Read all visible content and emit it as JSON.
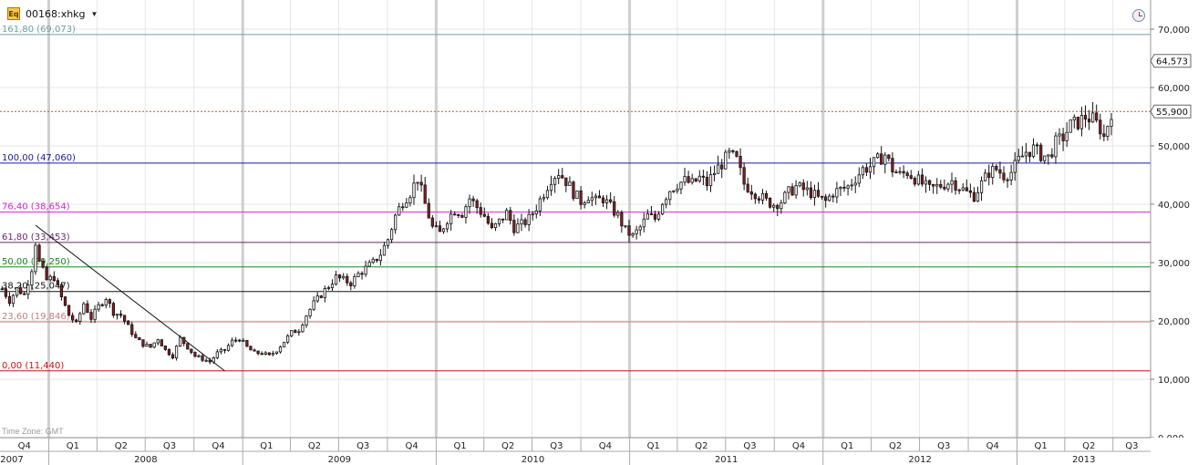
{
  "header": {
    "ticker": "00168:xhkg",
    "ticker_icon": "Eq",
    "timezone": "Time Zone: GMT"
  },
  "chart_data": {
    "type": "candlestick",
    "symbol": "00168:xhkg",
    "y_ticks": [
      "0,000",
      "10,000",
      "20,000",
      "30,000",
      "40,000",
      "50,000",
      "60,000",
      "70,000"
    ],
    "ylim": [
      0,
      75000
    ],
    "xlim": [
      "2007-10-01",
      "2013-09-10"
    ],
    "last_price": {
      "value": 55900,
      "label": "55,900"
    },
    "marker": {
      "value": 64573,
      "label": "64,573"
    },
    "fib_levels": [
      {
        "label": "161,80 (69,073)",
        "value": 69073,
        "color": "#6aa3a3"
      },
      {
        "label": "100,00 (47,060)",
        "value": 47060,
        "color": "#1a1a9e"
      },
      {
        "label": "76,40 (38,654)",
        "value": 38654,
        "color": "#dd22cc"
      },
      {
        "label": "61,80 (33,453)",
        "value": 33453,
        "color": "#6a2a6a"
      },
      {
        "label": "50,00 (29,250)",
        "value": 29250,
        "color": "#1a8a1a"
      },
      {
        "label": "38,20 (25,047)",
        "value": 25047,
        "color": "#111111"
      },
      {
        "label": "23,60 (19,846)",
        "value": 19846,
        "color": "#c08080"
      },
      {
        "label": "0,00 (11,440)",
        "value": 11440,
        "color": "#cc1111"
      }
    ],
    "trendline": [
      {
        "x": "2007-12-07",
        "y": 36400
      },
      {
        "x": "2008-11-28",
        "y": 11440
      }
    ],
    "x_quarters": [
      {
        "label": "Q4",
        "date": "2007-10-01"
      },
      {
        "label": "Q1",
        "date": "2008-01-01"
      },
      {
        "label": "Q2",
        "date": "2008-04-01"
      },
      {
        "label": "Q3",
        "date": "2008-07-01"
      },
      {
        "label": "Q4",
        "date": "2008-10-01"
      },
      {
        "label": "Q1",
        "date": "2009-01-01"
      },
      {
        "label": "Q2",
        "date": "2009-04-01"
      },
      {
        "label": "Q3",
        "date": "2009-07-01"
      },
      {
        "label": "Q4",
        "date": "2009-10-01"
      },
      {
        "label": "Q1",
        "date": "2010-01-01"
      },
      {
        "label": "Q2",
        "date": "2010-04-01"
      },
      {
        "label": "Q3",
        "date": "2010-07-01"
      },
      {
        "label": "Q4",
        "date": "2010-10-01"
      },
      {
        "label": "Q1",
        "date": "2011-01-01"
      },
      {
        "label": "Q2",
        "date": "2011-04-01"
      },
      {
        "label": "Q3",
        "date": "2011-07-01"
      },
      {
        "label": "Q4",
        "date": "2011-10-01"
      },
      {
        "label": "Q1",
        "date": "2012-01-01"
      },
      {
        "label": "Q2",
        "date": "2012-04-01"
      },
      {
        "label": "Q3",
        "date": "2012-07-01"
      },
      {
        "label": "Q4",
        "date": "2012-10-01"
      },
      {
        "label": "Q1",
        "date": "2013-01-01"
      },
      {
        "label": "Q2",
        "date": "2013-04-01"
      },
      {
        "label": "Q3",
        "date": "2013-07-01"
      }
    ],
    "x_years": [
      {
        "label": "2007",
        "start": "2007-10-01"
      },
      {
        "label": "2008",
        "start": "2008-01-01"
      },
      {
        "label": "2009",
        "start": "2009-01-01"
      },
      {
        "label": "2010",
        "start": "2010-01-01"
      },
      {
        "label": "2011",
        "start": "2011-01-01"
      },
      {
        "label": "2012",
        "start": "2012-01-01"
      },
      {
        "label": "2013",
        "start": "2013-01-01"
      }
    ],
    "close_path": [
      [
        "2007-10-05",
        25500
      ],
      [
        "2007-10-19",
        23500
      ],
      [
        "2007-11-02",
        25500
      ],
      [
        "2007-11-16",
        24500
      ],
      [
        "2007-11-30",
        29000
      ],
      [
        "2007-12-07",
        33500
      ],
      [
        "2007-12-14",
        30000
      ],
      [
        "2007-12-28",
        27000
      ],
      [
        "2008-01-11",
        27500
      ],
      [
        "2008-01-25",
        24000
      ],
      [
        "2008-02-08",
        21000
      ],
      [
        "2008-02-22",
        19500
      ],
      [
        "2008-03-07",
        23000
      ],
      [
        "2008-03-21",
        20500
      ],
      [
        "2008-04-04",
        22500
      ],
      [
        "2008-04-18",
        24000
      ],
      [
        "2008-05-02",
        21500
      ],
      [
        "2008-05-16",
        21000
      ],
      [
        "2008-05-30",
        19000
      ],
      [
        "2008-06-13",
        17000
      ],
      [
        "2008-06-27",
        16000
      ],
      [
        "2008-07-11",
        15500
      ],
      [
        "2008-07-25",
        17000
      ],
      [
        "2008-08-08",
        15000
      ],
      [
        "2008-08-22",
        14000
      ],
      [
        "2008-09-05",
        17000
      ],
      [
        "2008-09-19",
        15500
      ],
      [
        "2008-10-03",
        14000
      ],
      [
        "2008-10-17",
        13500
      ],
      [
        "2008-10-31",
        13000
      ],
      [
        "2008-11-14",
        14500
      ],
      [
        "2008-11-28",
        15000
      ],
      [
        "2008-12-12",
        16500
      ],
      [
        "2008-12-26",
        17000
      ],
      [
        "2009-01-09",
        15500
      ],
      [
        "2009-01-23",
        14500
      ],
      [
        "2009-02-06",
        14500
      ],
      [
        "2009-02-20",
        14000
      ],
      [
        "2009-03-06",
        15000
      ],
      [
        "2009-03-20",
        16500
      ],
      [
        "2009-04-03",
        18000
      ],
      [
        "2009-04-17",
        18500
      ],
      [
        "2009-05-01",
        21000
      ],
      [
        "2009-05-15",
        23000
      ],
      [
        "2009-05-29",
        24500
      ],
      [
        "2009-06-12",
        26000
      ],
      [
        "2009-06-26",
        27500
      ],
      [
        "2009-07-10",
        27000
      ],
      [
        "2009-07-24",
        26500
      ],
      [
        "2009-08-07",
        28000
      ],
      [
        "2009-08-21",
        29000
      ],
      [
        "2009-09-04",
        30000
      ],
      [
        "2009-09-18",
        31500
      ],
      [
        "2009-10-02",
        34000
      ],
      [
        "2009-10-16",
        38000
      ],
      [
        "2009-10-30",
        40500
      ],
      [
        "2009-11-13",
        42000
      ],
      [
        "2009-11-27",
        44500
      ],
      [
        "2009-12-11",
        40000
      ],
      [
        "2009-12-25",
        36000
      ],
      [
        "2010-01-08",
        35000
      ],
      [
        "2010-01-22",
        37500
      ],
      [
        "2010-02-05",
        39000
      ],
      [
        "2010-02-19",
        38500
      ],
      [
        "2010-03-05",
        41000
      ],
      [
        "2010-03-19",
        39500
      ],
      [
        "2010-04-02",
        38000
      ],
      [
        "2010-04-16",
        35500
      ],
      [
        "2010-04-30",
        37000
      ],
      [
        "2010-05-14",
        38500
      ],
      [
        "2010-05-28",
        36000
      ],
      [
        "2010-06-11",
        36500
      ],
      [
        "2010-06-25",
        37500
      ],
      [
        "2010-07-09",
        39500
      ],
      [
        "2010-07-23",
        42000
      ],
      [
        "2010-08-06",
        44500
      ],
      [
        "2010-08-20",
        45500
      ],
      [
        "2010-09-03",
        44000
      ],
      [
        "2010-09-17",
        42000
      ],
      [
        "2010-10-01",
        40500
      ],
      [
        "2010-10-15",
        41500
      ],
      [
        "2010-10-29",
        40500
      ],
      [
        "2010-11-12",
        41000
      ],
      [
        "2010-11-26",
        39500
      ],
      [
        "2010-12-10",
        38000
      ],
      [
        "2010-12-24",
        35500
      ],
      [
        "2011-01-07",
        34500
      ],
      [
        "2011-01-21",
        36000
      ],
      [
        "2011-02-04",
        38000
      ],
      [
        "2011-02-18",
        37500
      ],
      [
        "2011-03-04",
        40500
      ],
      [
        "2011-03-18",
        42500
      ],
      [
        "2011-04-01",
        43500
      ],
      [
        "2011-04-15",
        44000
      ],
      [
        "2011-04-29",
        43500
      ],
      [
        "2011-05-13",
        44500
      ],
      [
        "2011-05-27",
        43500
      ],
      [
        "2011-06-10",
        45500
      ],
      [
        "2011-06-24",
        47000
      ],
      [
        "2011-07-08",
        48500
      ],
      [
        "2011-07-22",
        47500
      ],
      [
        "2011-08-05",
        43500
      ],
      [
        "2011-08-19",
        42500
      ],
      [
        "2011-09-02",
        41500
      ],
      [
        "2011-09-16",
        40500
      ],
      [
        "2011-09-30",
        40000
      ],
      [
        "2011-10-14",
        40500
      ],
      [
        "2011-10-28",
        42000
      ],
      [
        "2011-11-11",
        43000
      ],
      [
        "2011-11-25",
        42500
      ],
      [
        "2011-12-09",
        42000
      ],
      [
        "2011-12-23",
        41000
      ],
      [
        "2012-01-06",
        40500
      ],
      [
        "2012-01-20",
        42000
      ],
      [
        "2012-02-03",
        42500
      ],
      [
        "2012-02-17",
        43000
      ],
      [
        "2012-03-02",
        44500
      ],
      [
        "2012-03-16",
        46000
      ],
      [
        "2012-03-30",
        46500
      ],
      [
        "2012-04-13",
        47500
      ],
      [
        "2012-04-27",
        48500
      ],
      [
        "2012-05-11",
        46000
      ],
      [
        "2012-05-25",
        45000
      ],
      [
        "2012-06-08",
        45500
      ],
      [
        "2012-06-22",
        44500
      ],
      [
        "2012-07-06",
        43500
      ],
      [
        "2012-07-20",
        42500
      ],
      [
        "2012-08-03",
        43000
      ],
      [
        "2012-08-17",
        43500
      ],
      [
        "2012-08-31",
        44000
      ],
      [
        "2012-09-14",
        43000
      ],
      [
        "2012-09-28",
        42000
      ],
      [
        "2012-10-12",
        41500
      ],
      [
        "2012-10-26",
        43500
      ],
      [
        "2012-11-09",
        45500
      ],
      [
        "2012-11-23",
        46000
      ],
      [
        "2012-12-07",
        45000
      ],
      [
        "2012-12-21",
        45500
      ],
      [
        "2013-01-04",
        47500
      ],
      [
        "2013-01-18",
        49000
      ],
      [
        "2013-02-01",
        49500
      ],
      [
        "2013-02-15",
        48500
      ],
      [
        "2013-03-01",
        48000
      ],
      [
        "2013-03-15",
        50500
      ],
      [
        "2013-03-29",
        51500
      ],
      [
        "2013-04-12",
        53500
      ],
      [
        "2013-04-26",
        54000
      ],
      [
        "2013-05-10",
        55000
      ],
      [
        "2013-05-24",
        54500
      ],
      [
        "2013-06-07",
        53000
      ],
      [
        "2013-06-14",
        51500
      ],
      [
        "2013-06-28",
        55900
      ]
    ]
  }
}
